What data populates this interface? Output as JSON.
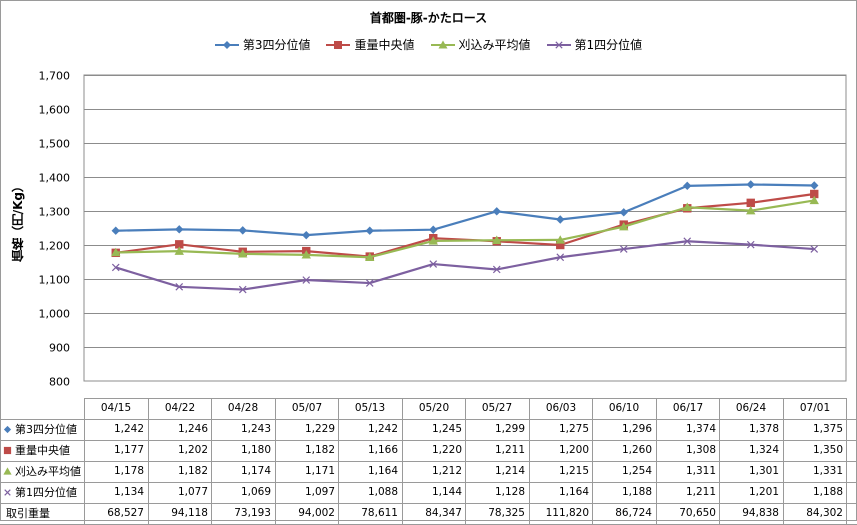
{
  "chart_data": {
    "type": "line",
    "title": "首都圏-豚-かたロース",
    "ylabel": "価格（円/Kg）",
    "xlabel": "",
    "ylim": [
      800,
      1700
    ],
    "yticks": [
      "800",
      "900",
      "1,000",
      "1,100",
      "1,200",
      "1,300",
      "1,400",
      "1,500",
      "1,600",
      "1,700"
    ],
    "categories": [
      "04/15",
      "04/22",
      "04/28",
      "05/07",
      "05/13",
      "05/20",
      "05/27",
      "06/03",
      "06/10",
      "06/17",
      "06/24",
      "07/01"
    ],
    "grid": true,
    "legend": "top",
    "series": [
      {
        "name": "第3四分位値",
        "color": "#4a7ebb",
        "marker": "diamond",
        "values": [
          1242,
          1246,
          1243,
          1229,
          1242,
          1245,
          1299,
          1275,
          1296,
          1374,
          1378,
          1375
        ],
        "labels": [
          "1,242",
          "1,246",
          "1,243",
          "1,229",
          "1,242",
          "1,245",
          "1,299",
          "1,275",
          "1,296",
          "1,374",
          "1,378",
          "1,375"
        ]
      },
      {
        "name": "重量中央値",
        "color": "#be4b48",
        "marker": "square",
        "values": [
          1177,
          1202,
          1180,
          1182,
          1166,
          1220,
          1211,
          1200,
          1260,
          1308,
          1324,
          1350
        ],
        "labels": [
          "1,177",
          "1,202",
          "1,180",
          "1,182",
          "1,166",
          "1,220",
          "1,211",
          "1,200",
          "1,260",
          "1,308",
          "1,324",
          "1,350"
        ]
      },
      {
        "name": "刈込み平均値",
        "color": "#98b954",
        "marker": "triangle",
        "values": [
          1178,
          1182,
          1174,
          1171,
          1164,
          1212,
          1214,
          1215,
          1254,
          1311,
          1301,
          1331
        ],
        "labels": [
          "1,178",
          "1,182",
          "1,174",
          "1,171",
          "1,164",
          "1,212",
          "1,214",
          "1,215",
          "1,254",
          "1,311",
          "1,301",
          "1,331"
        ]
      },
      {
        "name": "第1四分位値",
        "color": "#7d60a0",
        "marker": "x",
        "values": [
          1134,
          1077,
          1069,
          1097,
          1088,
          1144,
          1128,
          1164,
          1188,
          1211,
          1201,
          1188
        ],
        "labels": [
          "1,134",
          "1,077",
          "1,069",
          "1,097",
          "1,088",
          "1,144",
          "1,128",
          "1,164",
          "1,188",
          "1,211",
          "1,201",
          "1,188"
        ]
      }
    ],
    "table_extra": {
      "name": "取引重量",
      "values": [
        68527,
        94118,
        73193,
        94002,
        78611,
        84347,
        78325,
        111820,
        86724,
        70650,
        94838,
        84302
      ],
      "labels": [
        "68,527",
        "94,118",
        "73,193",
        "94,002",
        "78,611",
        "84,347",
        "78,325",
        "111,820",
        "86,724",
        "70,650",
        "94,838",
        "84,302"
      ]
    }
  }
}
